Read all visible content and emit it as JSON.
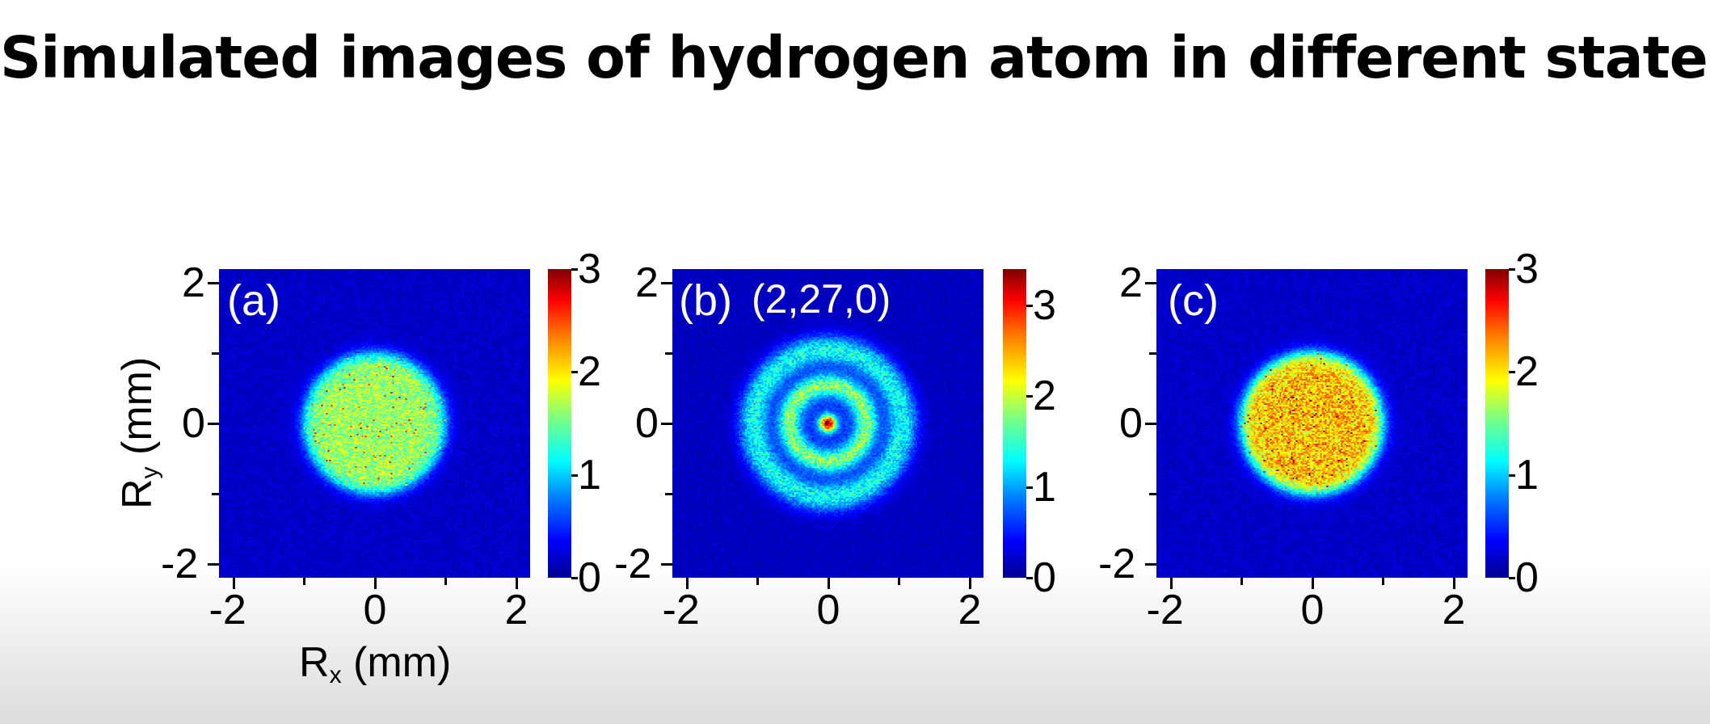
{
  "page": {
    "title": "Simulated images of hydrogen atom in different states"
  },
  "chart_data": [
    {
      "type": "heatmap",
      "panel_label": "(a)",
      "state_label": "",
      "xlabel": "R",
      "xlabel_sub": "x",
      "xlabel_unit": " (mm)",
      "ylabel": "R",
      "ylabel_sub": "y",
      "ylabel_unit": " (mm)",
      "xlim": [
        -2.2,
        2.2
      ],
      "ylim": [
        -2.2,
        2.2
      ],
      "xticks": [
        -2,
        0,
        2
      ],
      "yticks": [
        -2,
        0,
        2
      ],
      "x_tick_labels": [
        "-2",
        "0",
        "2"
      ],
      "y_tick_labels": [
        "-2",
        "0",
        "2"
      ],
      "colorbar": {
        "min": 0,
        "max": 3,
        "ticks": [
          0,
          1,
          2,
          3
        ],
        "tick_labels": [
          "0",
          "1",
          "2",
          "3"
        ]
      },
      "distribution": {
        "shape": "disk",
        "radius_mm": 1.0,
        "peak_intensity": 1.5,
        "center_spot": false
      }
    },
    {
      "type": "heatmap",
      "panel_label": "(b)",
      "state_label": "(2,27,0)",
      "xlim": [
        -2.2,
        2.2
      ],
      "ylim": [
        -2.2,
        2.2
      ],
      "xticks": [
        -2,
        0,
        2
      ],
      "yticks": [
        -2,
        0,
        2
      ],
      "x_tick_labels": [
        "-2",
        "0",
        "2"
      ],
      "y_tick_labels": [
        "-2",
        "0",
        "2"
      ],
      "colorbar": {
        "min": 0,
        "max": 3.4,
        "ticks": [
          0,
          1,
          2,
          3
        ],
        "tick_labels": [
          "0",
          "1",
          "2",
          "3"
        ]
      },
      "distribution": {
        "shape": "rings",
        "ring_radii_mm": [
          0.55,
          1.05
        ],
        "peak_intensity": 3.3,
        "center_spot": true
      }
    },
    {
      "type": "heatmap",
      "panel_label": "(c)",
      "state_label": "",
      "xlim": [
        -2.2,
        2.2
      ],
      "ylim": [
        -2.2,
        2.2
      ],
      "xticks": [
        -2,
        0,
        2
      ],
      "yticks": [
        -2,
        0,
        2
      ],
      "x_tick_labels": [
        "-2",
        "0",
        "2"
      ],
      "y_tick_labels": [
        "-2",
        "0",
        "2"
      ],
      "colorbar": {
        "min": 0,
        "max": 3,
        "ticks": [
          0,
          1,
          2,
          3
        ],
        "tick_labels": [
          "0",
          "1",
          "2",
          "3"
        ]
      },
      "distribution": {
        "shape": "disk",
        "radius_mm": 1.0,
        "peak_intensity": 2.0,
        "center_spot": false
      }
    }
  ]
}
